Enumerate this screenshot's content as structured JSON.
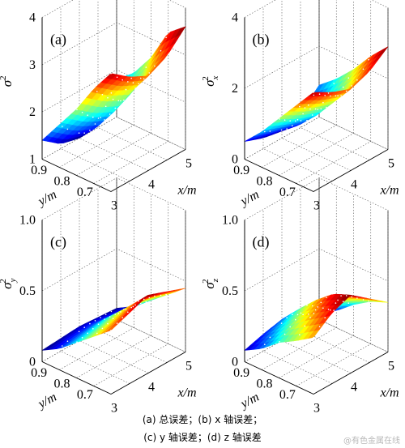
{
  "chart_data": [
    {
      "type": "surface",
      "panel_label": "(a)",
      "zlabel": "σ",
      "zlabel_sup": "2",
      "zlabel_sub": "",
      "xlabel": "x/m",
      "ylabel": "y/m",
      "x_ticks": [
        "3",
        "4",
        "5"
      ],
      "y_ticks": [
        "0.9",
        "0.8",
        "0.7"
      ],
      "z_ticks": [
        "1",
        "2",
        "3",
        "4"
      ],
      "xlim": [
        3,
        5
      ],
      "ylim": [
        0.65,
        0.95
      ],
      "zlim": [
        1,
        4
      ],
      "x": [
        3.0,
        3.5,
        4.0,
        4.5,
        5.0
      ],
      "y": [
        0.65,
        0.725,
        0.8,
        0.875,
        0.95
      ],
      "z": [
        [
          3.5,
          3.2,
          3.0,
          3.2,
          3.6
        ],
        [
          3.0,
          2.7,
          2.5,
          2.7,
          3.3
        ],
        [
          2.4,
          2.1,
          1.9,
          2.1,
          2.6
        ],
        [
          1.9,
          1.6,
          1.4,
          1.6,
          2.1
        ],
        [
          1.4,
          1.1,
          1.0,
          1.2,
          1.8
        ]
      ]
    },
    {
      "type": "surface",
      "panel_label": "(b)",
      "zlabel": "σ",
      "zlabel_sup": "2",
      "zlabel_sub": "x",
      "xlabel": "x/m",
      "ylabel": "y/m",
      "x_ticks": [
        "3",
        "4",
        "5"
      ],
      "y_ticks": [
        "0.9",
        "0.8",
        "0.7"
      ],
      "z_ticks": [
        "0",
        "2",
        "4"
      ],
      "xlim": [
        3,
        5
      ],
      "ylim": [
        0.65,
        0.95
      ],
      "zlim": [
        0,
        4
      ],
      "x": [
        3.0,
        3.5,
        4.0,
        4.5,
        5.0
      ],
      "y": [
        0.65,
        0.725,
        0.8,
        0.875,
        0.95
      ],
      "z": [
        [
          2.8,
          2.5,
          2.3,
          2.5,
          2.9
        ],
        [
          2.2,
          1.9,
          1.7,
          1.9,
          2.4
        ],
        [
          1.6,
          1.3,
          1.1,
          1.3,
          1.8
        ],
        [
          1.0,
          0.8,
          0.6,
          0.8,
          1.3
        ],
        [
          0.5,
          0.3,
          0.2,
          0.4,
          0.9
        ]
      ]
    },
    {
      "type": "surface",
      "panel_label": "(c)",
      "zlabel": "σ",
      "zlabel_sup": "2",
      "zlabel_sub": "y",
      "xlabel": "x/m",
      "ylabel": "y/m",
      "x_ticks": [
        "3",
        "4",
        "5"
      ],
      "y_ticks": [
        "0.9",
        "0.8",
        "0.7"
      ],
      "z_ticks": [
        "0",
        "0.5",
        "1.0"
      ],
      "xlim": [
        3,
        5
      ],
      "ylim": [
        0.65,
        0.95
      ],
      "zlim": [
        0,
        1
      ],
      "x": [
        3.0,
        3.5,
        4.0,
        4.5,
        5.0
      ],
      "y": [
        0.65,
        0.725,
        0.8,
        0.875,
        0.95
      ],
      "z": [
        [
          0.45,
          0.5,
          0.55,
          0.5,
          0.45
        ],
        [
          0.35,
          0.38,
          0.42,
          0.4,
          0.35
        ],
        [
          0.25,
          0.27,
          0.3,
          0.28,
          0.25
        ],
        [
          0.15,
          0.17,
          0.18,
          0.17,
          0.15
        ],
        [
          0.08,
          0.09,
          0.1,
          0.09,
          0.08
        ]
      ]
    },
    {
      "type": "surface",
      "panel_label": "(d)",
      "zlabel": "σ",
      "zlabel_sup": "2",
      "zlabel_sub": "z",
      "xlabel": "x/m",
      "ylabel": "y/m",
      "x_ticks": [
        "3",
        "4",
        "5"
      ],
      "y_ticks": [
        "0.9",
        "0.8",
        "0.7"
      ],
      "z_ticks": [
        "0",
        "0.5",
        "1.0"
      ],
      "xlim": [
        3,
        5
      ],
      "ylim": [
        0.65,
        0.95
      ],
      "zlim": [
        0,
        1
      ],
      "x": [
        3.0,
        3.5,
        4.0,
        4.5,
        5.0
      ],
      "y": [
        0.65,
        0.725,
        0.8,
        0.875,
        0.95
      ],
      "z": [
        [
          0.4,
          0.5,
          0.55,
          0.45,
          0.35
        ],
        [
          0.32,
          0.42,
          0.5,
          0.4,
          0.3
        ],
        [
          0.25,
          0.33,
          0.4,
          0.32,
          0.22
        ],
        [
          0.15,
          0.22,
          0.28,
          0.2,
          0.12
        ],
        [
          0.08,
          0.12,
          0.15,
          0.1,
          0.05
        ]
      ]
    }
  ],
  "caption": {
    "line1": "(a) 总误差；(b) x 轴误差；",
    "line2": "(c) y 轴误差；(d) z 轴误差"
  },
  "watermark": "@有色金属在线",
  "colors": {
    "low": "#00008f",
    "mid": "#00ffff",
    "high": "#ff0000"
  }
}
